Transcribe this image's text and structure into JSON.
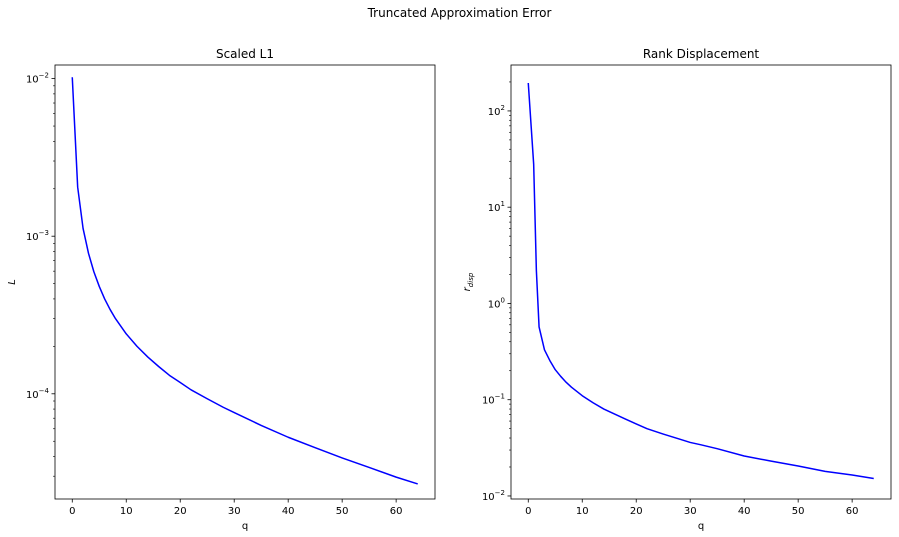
{
  "figure": {
    "suptitle": "Truncated Approximation Error"
  },
  "chart_data": [
    {
      "type": "line",
      "title": "Scaled L1",
      "xlabel": "q",
      "ylabel": "L",
      "yscale": "log",
      "xlim": [
        -3.2,
        67.2
      ],
      "ylim": [
        2.15e-05,
        0.0122
      ],
      "xticks": [
        0,
        10,
        20,
        30,
        40,
        50,
        60
      ],
      "yticks": [
        {
          "value": 0.0001,
          "base": "10",
          "exp": "−4"
        },
        {
          "value": 0.001,
          "base": "10",
          "exp": "−3"
        },
        {
          "value": 0.01,
          "base": "10",
          "exp": "−2"
        }
      ],
      "grid": false,
      "color": "#0000ff",
      "series": [
        {
          "x": [
            0,
            1,
            2,
            3,
            4,
            5,
            6,
            7,
            8,
            10,
            12,
            14,
            16,
            18,
            20,
            22,
            25,
            28,
            30,
            35,
            40,
            45,
            50,
            55,
            60,
            64
          ],
          "y": [
            0.0102,
            0.00205,
            0.00112,
            0.00078,
            0.000595,
            0.00048,
            0.0004,
            0.000343,
            0.0003,
            0.00024,
            0.0002,
            0.000171,
            0.000149,
            0.000131,
            0.000118,
            0.000106,
            9.3e-05,
            8.2e-05,
            7.6e-05,
            6.3e-05,
            5.3e-05,
            4.55e-05,
            3.92e-05,
            3.41e-05,
            2.96e-05,
            2.68e-05
          ]
        }
      ]
    },
    {
      "type": "line",
      "title": "Rank Displacement",
      "xlabel": "q",
      "ylabel": "r",
      "ylabel_subscript": "disp",
      "yscale": "log",
      "xlim": [
        -3.2,
        67.2
      ],
      "ylim": [
        0.0093,
        300
      ],
      "xticks": [
        0,
        10,
        20,
        30,
        40,
        50,
        60
      ],
      "yticks": [
        {
          "value": 0.01,
          "base": "10",
          "exp": "−2"
        },
        {
          "value": 0.1,
          "base": "10",
          "exp": "−1"
        },
        {
          "value": 1,
          "base": "10",
          "exp": "0"
        },
        {
          "value": 10,
          "base": "10",
          "exp": "1"
        },
        {
          "value": 100,
          "base": "10",
          "exp": "2"
        }
      ],
      "grid": false,
      "color": "#0000ff",
      "series": [
        {
          "x": [
            0,
            1,
            1.5,
            2,
            3,
            4,
            5,
            6,
            7,
            8,
            10,
            12,
            14,
            16,
            18,
            20,
            22,
            25,
            28,
            30,
            32,
            35,
            40,
            45,
            50,
            55,
            60,
            64
          ],
          "y": [
            195,
            28,
            2.2,
            0.57,
            0.33,
            0.255,
            0.205,
            0.175,
            0.152,
            0.135,
            0.11,
            0.093,
            0.08,
            0.071,
            0.063,
            0.056,
            0.05,
            0.044,
            0.039,
            0.036,
            0.034,
            0.031,
            0.026,
            0.023,
            0.0205,
            0.018,
            0.0165,
            0.0152
          ]
        }
      ]
    }
  ]
}
